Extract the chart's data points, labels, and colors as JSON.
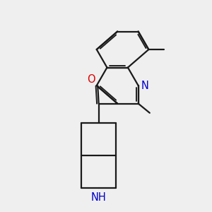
{
  "bg_color": "#efefef",
  "bond_color": "#1a1a1a",
  "N_color": "#0000cc",
  "O_color": "#dd0000",
  "lw": 1.6,
  "fs": 10.5,
  "bl": 1.0,
  "xlim": [
    0,
    10
  ],
  "ylim": [
    0,
    10
  ]
}
